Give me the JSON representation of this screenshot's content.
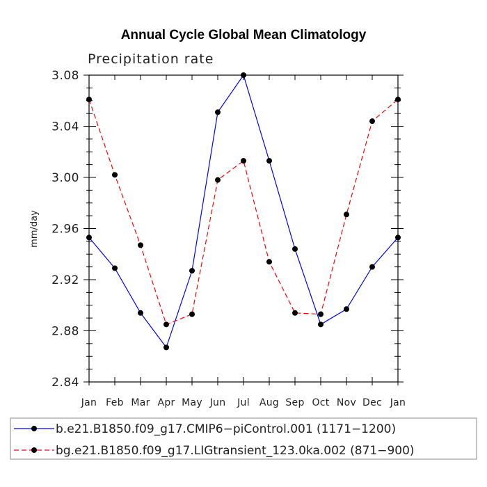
{
  "chart_data": {
    "type": "line",
    "title": "Annual Cycle Global Mean Climatology",
    "subtitle": "Precipitation rate",
    "xlabel": "",
    "ylabel": "mm/day",
    "ylim": [
      2.84,
      3.08
    ],
    "yticks": [
      "2.84",
      "2.88",
      "2.92",
      "2.96",
      "3.00",
      "3.04",
      "3.08"
    ],
    "categories": [
      "Jan",
      "Feb",
      "Mar",
      "Apr",
      "May",
      "Jun",
      "Jul",
      "Aug",
      "Sep",
      "Oct",
      "Nov",
      "Dec",
      "Jan"
    ],
    "series": [
      {
        "name": "b.e21.B1850.f09_g17.CMIP6−piControl.001 (1171−1200)",
        "color": "#0000ff",
        "style": "solid",
        "values": [
          2.953,
          2.929,
          2.894,
          2.867,
          2.927,
          3.051,
          3.08,
          3.013,
          2.944,
          2.885,
          2.897,
          2.93,
          2.953
        ]
      },
      {
        "name": "bg.e21.B1850.f09_g17.LIGtransient_123.0ka.002 (871−900)",
        "color": "#ff0000",
        "style": "dashed",
        "values": [
          3.061,
          3.002,
          2.947,
          2.885,
          2.893,
          2.998,
          3.013,
          2.934,
          2.894,
          2.893,
          2.971,
          3.044,
          3.061
        ]
      }
    ],
    "grid": false,
    "legend": "bottom"
  }
}
